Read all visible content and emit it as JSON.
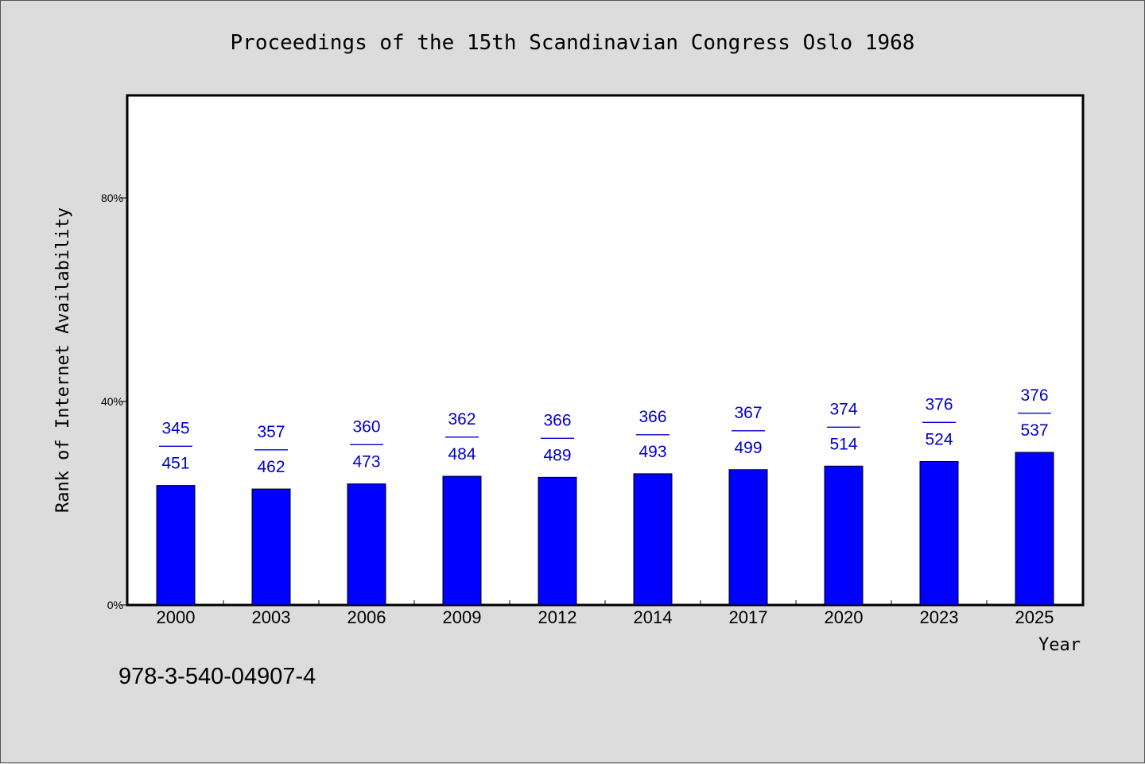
{
  "chart_data": {
    "type": "bar",
    "title": "Proceedings of the 15th Scandinavian Congress Oslo 1968",
    "xlabel": "Year",
    "ylabel": "Rank of Internet Availability",
    "categories": [
      "2000",
      "2003",
      "2006",
      "2009",
      "2012",
      "2014",
      "2017",
      "2020",
      "2023",
      "2025"
    ],
    "values": [
      23.5,
      22.8,
      23.8,
      25.3,
      25.1,
      25.8,
      26.6,
      27.3,
      28.2,
      30.0
    ],
    "data_labels": [
      [
        "345",
        "451"
      ],
      [
        "357",
        "462"
      ],
      [
        "360",
        "473"
      ],
      [
        "362",
        "484"
      ],
      [
        "366",
        "489"
      ],
      [
        "366",
        "493"
      ],
      [
        "367",
        "499"
      ],
      [
        "374",
        "514"
      ],
      [
        "376",
        "524"
      ],
      [
        "376",
        "537"
      ]
    ],
    "label_separator": "——",
    "yticks": [
      "0%",
      "40%",
      "80%"
    ],
    "ytick_values": [
      0,
      40,
      80
    ],
    "ylim": [
      0,
      100
    ],
    "grid": false,
    "bar_color": "#0000ff",
    "label_color": "#0000cc"
  },
  "footnote": "978-3-540-04907-4"
}
